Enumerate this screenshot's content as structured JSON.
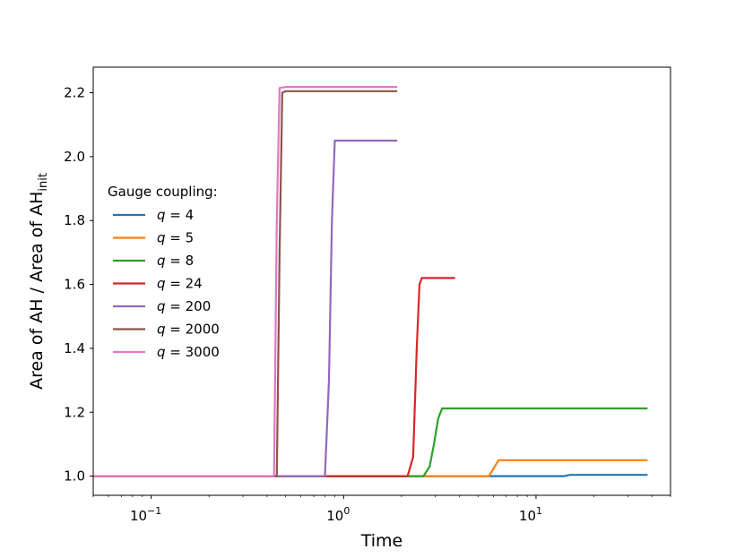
{
  "chart_data": {
    "type": "line",
    "title": "",
    "xlabel": "Time",
    "ylabel": "Area of AH / Area of AH",
    "ylabel_sub": "init",
    "x_scale": "log",
    "xlim": [
      0.05,
      50
    ],
    "ylim": [
      0.94,
      2.28
    ],
    "y_ticks": [
      "1.0",
      "1.2",
      "1.4",
      "1.6",
      "1.8",
      "2.0",
      "2.2"
    ],
    "x_ticks": [
      {
        "base": "10",
        "exp": "−1"
      },
      {
        "base": "10",
        "exp": "0"
      },
      {
        "base": "10",
        "exp": "1"
      }
    ],
    "grid": false,
    "legend": {
      "title": "Gauge coupling:",
      "placement": "center-left"
    },
    "series": [
      {
        "name": "4",
        "color": "#1f77b4",
        "points": [
          [
            0.05,
            1.0
          ],
          [
            14,
            1.0
          ],
          [
            15,
            1.004
          ],
          [
            38,
            1.004
          ]
        ]
      },
      {
        "name": "5",
        "color": "#ff7f0e",
        "points": [
          [
            0.05,
            1.0
          ],
          [
            5.7,
            1.0
          ],
          [
            6.1,
            1.03
          ],
          [
            6.4,
            1.05
          ],
          [
            38,
            1.05
          ]
        ]
      },
      {
        "name": "8",
        "color": "#2ca02c",
        "points": [
          [
            0.05,
            1.0
          ],
          [
            2.6,
            1.0
          ],
          [
            2.8,
            1.03
          ],
          [
            2.95,
            1.1
          ],
          [
            3.1,
            1.18
          ],
          [
            3.25,
            1.212
          ],
          [
            38,
            1.212
          ]
        ]
      },
      {
        "name": "24",
        "color": "#d62728",
        "points": [
          [
            0.05,
            1.0
          ],
          [
            2.15,
            1.0
          ],
          [
            2.3,
            1.06
          ],
          [
            2.4,
            1.4
          ],
          [
            2.48,
            1.6
          ],
          [
            2.55,
            1.62
          ],
          [
            3.8,
            1.62
          ]
        ]
      },
      {
        "name": "200",
        "color": "#9467bd",
        "points": [
          [
            0.05,
            1.0
          ],
          [
            0.8,
            1.0
          ],
          [
            0.84,
            1.3
          ],
          [
            0.87,
            1.8
          ],
          [
            0.9,
            2.05
          ],
          [
            1.9,
            2.05
          ]
        ]
      },
      {
        "name": "2000",
        "color": "#8c564b",
        "points": [
          [
            0.05,
            1.0
          ],
          [
            0.45,
            1.0
          ],
          [
            0.465,
            1.7
          ],
          [
            0.48,
            2.2
          ],
          [
            0.5,
            2.205
          ],
          [
            1.9,
            2.205
          ]
        ]
      },
      {
        "name": "3000",
        "color": "#e377c2",
        "points": [
          [
            0.05,
            1.0
          ],
          [
            0.435,
            1.0
          ],
          [
            0.45,
            1.8
          ],
          [
            0.465,
            2.215
          ],
          [
            0.5,
            2.218
          ],
          [
            1.9,
            2.218
          ]
        ]
      }
    ]
  }
}
